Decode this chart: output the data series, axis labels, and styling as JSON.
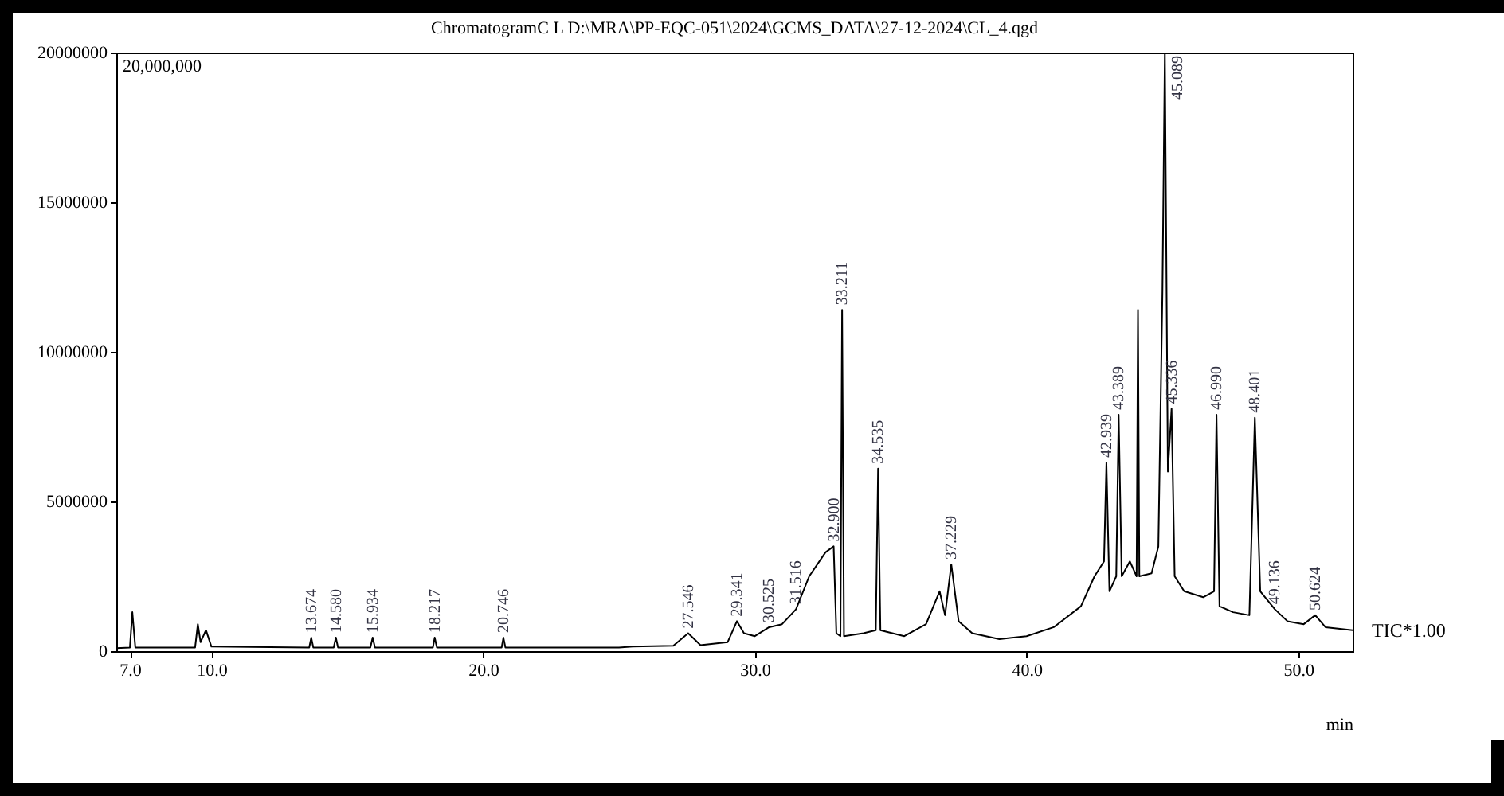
{
  "chart_data": {
    "type": "line",
    "title": "ChromatogramC L  D:\\MRA\\PP-EQC-051\\2024\\GCMS_DATA\\27-12-2024\\CL_4.qgd",
    "xlabel": "min",
    "xlim": [
      6.5,
      52
    ],
    "ylim": [
      0,
      20000000
    ],
    "xticks": [
      {
        "value": 7,
        "label": "7.0"
      },
      {
        "value": 10,
        "label": "10.0"
      },
      {
        "value": 20,
        "label": "20.0"
      },
      {
        "value": 30,
        "label": "30.0"
      },
      {
        "value": 40,
        "label": "40.0"
      },
      {
        "value": 50,
        "label": "50.0"
      }
    ],
    "yticks": [
      0,
      5000000,
      10000000,
      15000000,
      20000000
    ],
    "grid": false,
    "marker": "none",
    "line_style": "solid",
    "x": [
      6.5,
      7.0,
      7.09,
      7.2,
      9.4,
      9.5,
      9.6,
      9.8,
      10.0,
      13.6,
      13.674,
      13.75,
      14.5,
      14.58,
      14.66,
      15.85,
      15.934,
      16.02,
      18.15,
      18.217,
      18.3,
      20.68,
      20.746,
      20.82,
      25.0,
      25.5,
      27.0,
      27.546,
      28.0,
      29.0,
      29.341,
      29.6,
      30.0,
      30.525,
      31.0,
      31.516,
      32.0,
      32.6,
      32.9,
      33.0,
      33.15,
      33.211,
      33.28,
      34.0,
      34.45,
      34.535,
      34.62,
      35.5,
      36.3,
      36.8,
      37.0,
      37.229,
      37.5,
      38.0,
      39.0,
      40.0,
      41.0,
      42.0,
      42.5,
      42.85,
      42.939,
      43.05,
      43.3,
      43.389,
      43.5,
      43.8,
      44.05,
      44.1,
      44.15,
      44.6,
      44.85,
      45.0,
      45.089,
      45.2,
      45.336,
      45.45,
      45.8,
      46.5,
      46.9,
      46.99,
      47.1,
      47.6,
      48.2,
      48.401,
      48.6,
      49.136,
      49.6,
      50.2,
      50.624,
      51.0,
      52.0
    ],
    "series": [
      {
        "name": "TIC*1.00",
        "color": "#000000",
        "values": [
          100000,
          120000,
          1300000,
          120000,
          120000,
          900000,
          300000,
          700000,
          150000,
          120000,
          450000,
          120000,
          120000,
          450000,
          120000,
          120000,
          450000,
          120000,
          120000,
          450000,
          120000,
          120000,
          450000,
          120000,
          120000,
          150000,
          180000,
          600000,
          200000,
          300000,
          1000000,
          600000,
          500000,
          800000,
          900000,
          1400000,
          2500000,
          3300000,
          3500000,
          600000,
          500000,
          11400000,
          500000,
          600000,
          700000,
          6100000,
          700000,
          500000,
          900000,
          2000000,
          1200000,
          2900000,
          1000000,
          600000,
          400000,
          500000,
          800000,
          1500000,
          2500000,
          3000000,
          6300000,
          2000000,
          2500000,
          7900000,
          2500000,
          3000000,
          2500000,
          11400000,
          2500000,
          2600000,
          3500000,
          12000000,
          20000000,
          6000000,
          8100000,
          2500000,
          2000000,
          1800000,
          2000000,
          7900000,
          1500000,
          1300000,
          1200000,
          7800000,
          2000000,
          1400000,
          1000000,
          900000,
          1200000,
          800000,
          700000
        ]
      }
    ],
    "annotations": [
      "20,000,000",
      {
        "text": "13.674",
        "x": 13.674,
        "y": 450000
      },
      {
        "text": "14.580",
        "x": 14.58,
        "y": 450000
      },
      {
        "text": "15.934",
        "x": 15.934,
        "y": 450000
      },
      {
        "text": "18.217",
        "x": 18.217,
        "y": 450000
      },
      {
        "text": "20.746",
        "x": 20.746,
        "y": 450000
      },
      {
        "text": "27.546",
        "x": 27.546,
        "y": 600000
      },
      {
        "text": "29.341",
        "x": 29.341,
        "y": 1000000
      },
      {
        "text": "30.525",
        "x": 30.525,
        "y": 800000
      },
      {
        "text": "31.516",
        "x": 31.516,
        "y": 1400000
      },
      {
        "text": "32.900",
        "x": 32.9,
        "y": 3500000
      },
      {
        "text": "33.211",
        "x": 33.211,
        "y": 11400000
      },
      {
        "text": "34.535",
        "x": 34.535,
        "y": 6100000
      },
      {
        "text": "37.229",
        "x": 37.229,
        "y": 2900000
      },
      {
        "text": "42.939",
        "x": 42.939,
        "y": 6300000
      },
      {
        "text": "43.389",
        "x": 43.389,
        "y": 7900000
      },
      {
        "text": "45.089",
        "x": 45.089,
        "y": 20000000
      },
      {
        "text": "45.336",
        "x": 45.336,
        "y": 8100000
      },
      {
        "text": "46.990",
        "x": 46.99,
        "y": 7900000
      },
      {
        "text": "48.401",
        "x": 48.401,
        "y": 7800000
      },
      {
        "text": "49.136",
        "x": 49.136,
        "y": 1400000
      },
      {
        "text": "50.624",
        "x": 50.624,
        "y": 1200000
      }
    ]
  }
}
